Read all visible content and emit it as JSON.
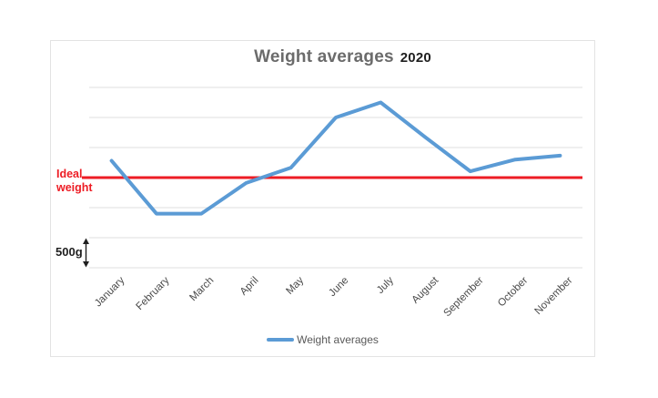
{
  "chart": {
    "title": "Weight averages",
    "year": "2020",
    "ideal_line_label_line1": "Ideal",
    "ideal_line_label_line2": "weight",
    "scale_label": "500g",
    "legend_label": "Weight averages",
    "colors": {
      "series_blue": "#5b9bd5",
      "ideal_red": "#ed1c24",
      "gridline": "#e5e5e5",
      "frame_border": "#e3e3e3",
      "title_gray": "#6b6b6b",
      "year_black": "#1f1f1f",
      "axis_label": "#4a4a4a",
      "legend_text": "#595959",
      "arrow_black": "#1f1f1f"
    }
  },
  "chart_data": {
    "type": "line",
    "title": "Weight averages 2020",
    "categories": [
      "January",
      "February",
      "March",
      "April",
      "May",
      "June",
      "July",
      "August",
      "September",
      "October",
      "November"
    ],
    "series": [
      {
        "name": "Weight averages",
        "values": [
          280,
          -600,
          -600,
          -90,
          165,
          1000,
          1250,
          670,
          105,
          300,
          365
        ]
      }
    ],
    "reference_line": {
      "label": "Ideal weight",
      "value": 0
    },
    "values_unit": "grams relative to ideal weight",
    "gridline_step": 500,
    "scale_annotation": "500g per gridline gap",
    "ylim": [
      -1500,
      1500
    ],
    "grid": true,
    "x_label_rotation": -45,
    "legend_position": "bottom",
    "y_tick_labels_visible": false
  }
}
